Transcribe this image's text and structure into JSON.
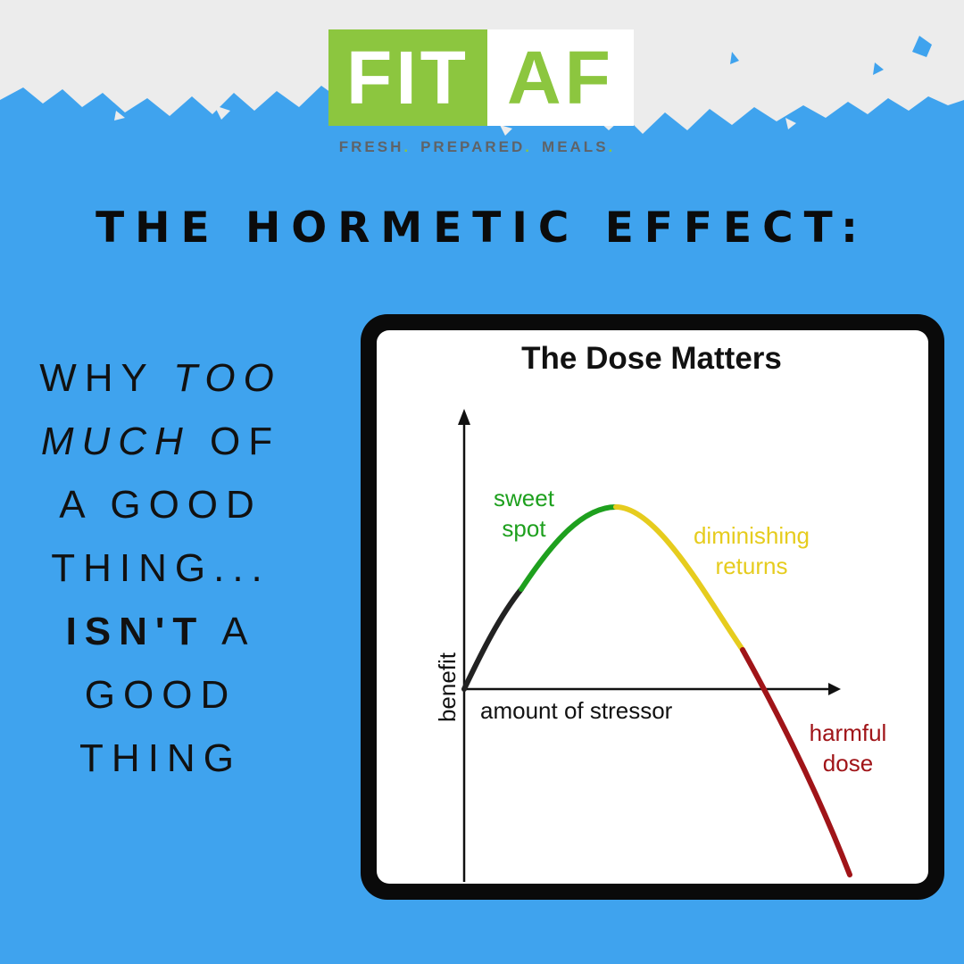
{
  "logo": {
    "part1": "FIT",
    "part2": "AF"
  },
  "tagline": {
    "words": [
      "FRESH",
      "PREPARED",
      "MEALS"
    ],
    "dot": "."
  },
  "headline": "THE HORMETIC EFFECT:",
  "side_text": {
    "line1_a": "WHY ",
    "line1_b": "TOO",
    "line2_a": "MUCH",
    "line2_b": " OF",
    "line3": "A GOOD",
    "line4": "THING...",
    "line5_a": "ISN'T",
    "line5_b": " A",
    "line6": "GOOD",
    "line7": "THING"
  },
  "diagram": {
    "title": "The Dose Matters",
    "y_axis_label": "benefit",
    "x_axis_label": "amount of stressor",
    "segments": [
      {
        "label_lines": [
          "sweet",
          "spot"
        ],
        "color": "#1ea01e"
      },
      {
        "label_lines": [
          "diminishing",
          "returns"
        ],
        "color": "#e6cc1e"
      },
      {
        "label_lines": [
          "harmful",
          "dose"
        ],
        "color": "#a01418"
      }
    ],
    "start_segment_color": "#222222"
  },
  "colors": {
    "background": "#3fa3ee",
    "band": "#ececec",
    "brand_green": "#8cc63f"
  }
}
